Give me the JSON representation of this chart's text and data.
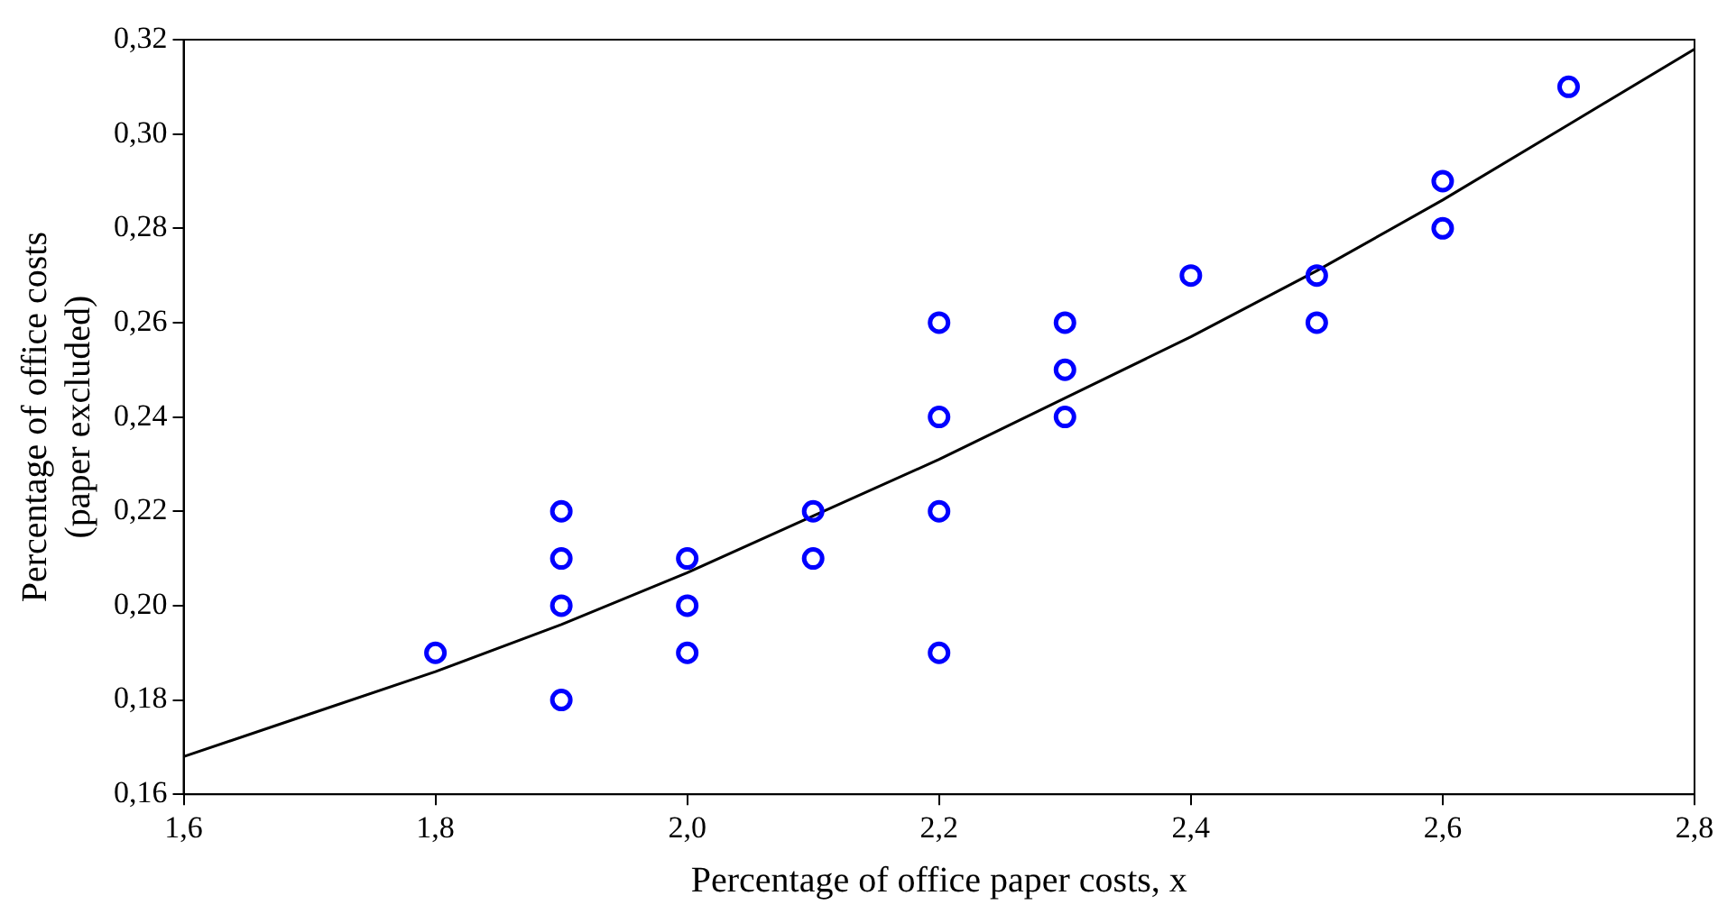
{
  "chart_data": {
    "type": "scatter",
    "xlabel": "Percentage of office paper costs, x",
    "ylabel": "Percentage of office costs\n(paper excluded)",
    "xlim": [
      1.6,
      2.8
    ],
    "xticks": [
      {
        "value": 1.6,
        "label": "1,6"
      },
      {
        "value": 1.8,
        "label": "1,8"
      },
      {
        "value": 2.0,
        "label": "2,0"
      },
      {
        "value": 2.2,
        "label": "2,2"
      },
      {
        "value": 2.4,
        "label": "2,4"
      },
      {
        "value": 2.6,
        "label": "2,6"
      },
      {
        "value": 2.8,
        "label": "2,8"
      }
    ],
    "ylim": [
      0.16,
      0.32
    ],
    "yticks": [
      {
        "value": 0.16,
        "label": "0,16"
      },
      {
        "value": 0.18,
        "label": "0,18"
      },
      {
        "value": 0.2,
        "label": "0,20"
      },
      {
        "value": 0.22,
        "label": "0,22"
      },
      {
        "value": 0.24,
        "label": "0,24"
      },
      {
        "value": 0.26,
        "label": "0,26"
      },
      {
        "value": 0.28,
        "label": "0,28"
      },
      {
        "value": 0.3,
        "label": "0,30"
      },
      {
        "value": 0.32,
        "label": "0,32"
      }
    ],
    "grid": false,
    "legend": false,
    "series": [
      {
        "color": "#0000ff",
        "marker": "circle",
        "x": [
          1.8,
          1.9,
          1.9,
          1.9,
          1.9,
          2.0,
          2.0,
          2.0,
          2.1,
          2.1,
          2.2,
          2.2,
          2.2,
          2.2,
          2.3,
          2.3,
          2.3,
          2.4,
          2.5,
          2.5,
          2.6,
          2.6,
          2.7
        ],
        "values": [
          0.19,
          0.22,
          0.21,
          0.2,
          0.18,
          0.21,
          0.2,
          0.19,
          0.22,
          0.21,
          0.26,
          0.24,
          0.22,
          0.19,
          0.26,
          0.25,
          0.24,
          0.27,
          0.27,
          0.26,
          0.29,
          0.28,
          0.31
        ]
      },
      {
        "type": "line",
        "color": "#000000",
        "marker": "none",
        "line_style": "solid",
        "x": [
          1.6,
          1.7,
          1.8,
          1.9,
          2.0,
          2.1,
          2.2,
          2.3,
          2.4,
          2.5,
          2.6,
          2.7,
          2.8
        ],
        "values": [
          0.168,
          0.177,
          0.186,
          0.196,
          0.207,
          0.219,
          0.231,
          0.244,
          0.257,
          0.271,
          0.286,
          0.302,
          0.318
        ]
      }
    ]
  }
}
